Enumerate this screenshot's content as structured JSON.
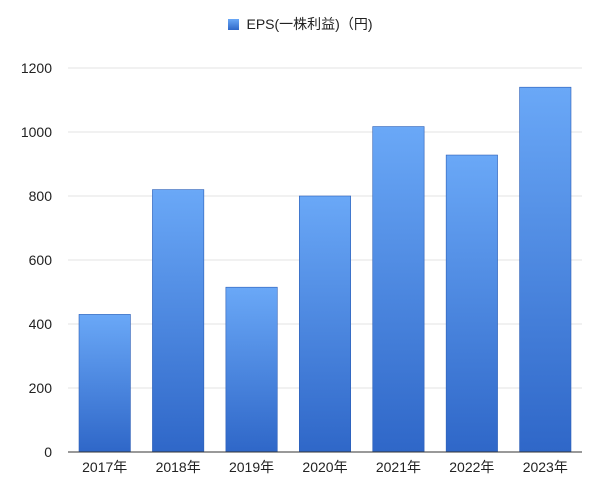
{
  "chart_data": {
    "type": "bar",
    "title": "",
    "xlabel": "",
    "ylabel": "",
    "categories": [
      "2017年",
      "2018年",
      "2019年",
      "2020年",
      "2021年",
      "2022年",
      "2023年"
    ],
    "series": [
      {
        "name": "EPS(一株利益)（円)",
        "values": [
          430,
          820,
          515,
          800,
          1017,
          928,
          1140
        ]
      }
    ],
    "ylim": [
      0,
      1200
    ],
    "yticks": [
      "0",
      "200",
      "400",
      "600",
      "800",
      "1000",
      "1200"
    ],
    "grid": true,
    "legend_position": "top-center",
    "colors": {
      "bar_top": "#6aa8f7",
      "bar_bottom": "#2f67c8",
      "bar_edge": "#2a5db5",
      "grid": "#e3e3e3",
      "axis": "#333333"
    }
  }
}
